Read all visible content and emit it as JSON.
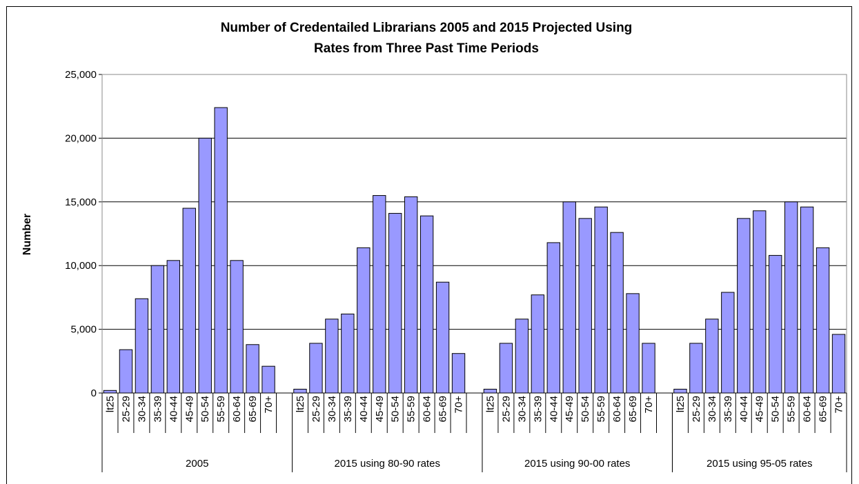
{
  "chart_data": {
    "type": "bar",
    "title": [
      "Number of Credentailed Librarians 2005 and 2015 Projected Using",
      "Rates from Three Past Time Periods"
    ],
    "y_label": "Number",
    "color": "#9999ff",
    "grid": true,
    "ylim": [
      0,
      25000
    ],
    "yticks": [
      0,
      {
        "value": 5000,
        "label": "5,000"
      },
      {
        "value": 10000,
        "label": "10,000"
      },
      {
        "value": 15000,
        "label": "15,000"
      },
      {
        "value": 20000,
        "label": "20,000"
      },
      {
        "value": 25000,
        "label": "25,000"
      }
    ],
    "groups": [
      {
        "name": "2005",
        "categories": [
          "lt25",
          "25-29",
          "30-34",
          "35-39",
          "40-44",
          "45-49",
          "50-54",
          "55-59",
          "60-64",
          "65-69",
          "70+"
        ],
        "values": [
          200,
          3400,
          7400,
          10000,
          10400,
          14500,
          20000,
          22400,
          10400,
          3800,
          2100
        ]
      },
      {
        "name": "2015 using 80-90 rates",
        "categories": [
          "lt25",
          "25-29",
          "30-34",
          "35-39",
          "40-44",
          "45-49",
          "50-54",
          "55-59",
          "60-64",
          "65-69",
          "70+"
        ],
        "values": [
          300,
          3900,
          5800,
          6200,
          11400,
          15500,
          14100,
          15400,
          13900,
          8700,
          3100
        ]
      },
      {
        "name": "2015 using 90-00 rates",
        "categories": [
          "lt25",
          "25-29",
          "30-34",
          "35-39",
          "40-44",
          "45-49",
          "50-54",
          "55-59",
          "60-64",
          "65-69",
          "70+"
        ],
        "values": [
          300,
          3900,
          5800,
          7700,
          11800,
          15000,
          13700,
          14600,
          12600,
          7800,
          3900
        ]
      },
      {
        "name": "2015 using 95-05 rates",
        "categories": [
          "lt25",
          "25-29",
          "30-34",
          "35-39",
          "40-44",
          "45-49",
          "50-54",
          "55-59",
          "60-64",
          "65-69",
          "70+"
        ],
        "values": [
          300,
          3900,
          5800,
          7900,
          13700,
          14300,
          10800,
          15000,
          14600,
          11400,
          4600
        ]
      }
    ]
  }
}
